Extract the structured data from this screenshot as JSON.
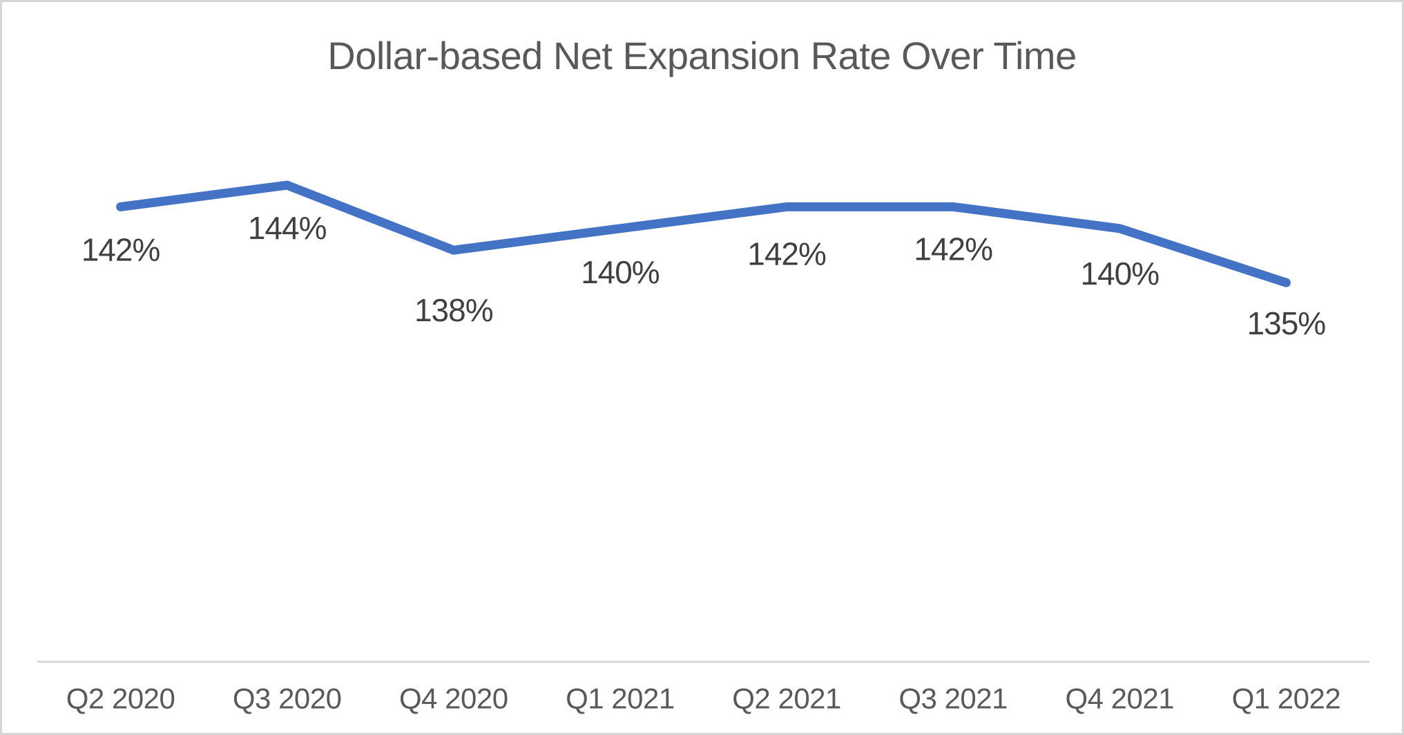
{
  "chart_data": {
    "type": "line",
    "title": "Dollar-based Net Expansion Rate Over Time",
    "categories": [
      "Q2 2020",
      "Q3 2020",
      "Q4 2020",
      "Q1 2021",
      "Q2 2021",
      "Q3 2021",
      "Q4 2021",
      "Q1 2022"
    ],
    "values": [
      142,
      144,
      138,
      140,
      142,
      142,
      140,
      135
    ],
    "data_labels": [
      "142%",
      "144%",
      "138%",
      "140%",
      "142%",
      "142%",
      "140%",
      "135%"
    ],
    "xlabel": "",
    "ylabel": "",
    "ylim": [
      100,
      150
    ],
    "grid": false,
    "legend": false,
    "label_position": "below",
    "label_dy": [
      62,
      62,
      87,
      63,
      68,
      61,
      65,
      59
    ],
    "colors": {
      "line": "#4472C4",
      "title": "#595959",
      "data_label": "#404040",
      "axis_label": "#595959",
      "axis_line": "#d9d9d9",
      "background": "#ffffff",
      "border": "#d7d7d7"
    }
  }
}
